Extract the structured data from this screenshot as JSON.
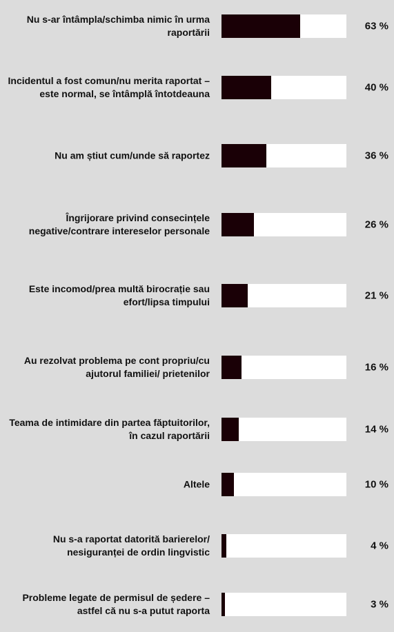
{
  "chart_data": {
    "type": "bar",
    "orientation": "horizontal",
    "categories": [
      "Nu s-ar întâmpla/schimba nimic în urma raportării",
      "Incidentul a fost comun/nu merita raportat – este normal, se întâmplă întotdeauna",
      "Nu am știut cum/unde să raportez",
      "Îngrijorare privind consecințele negative/contrare intereselor personale",
      "Este incomod/prea multă birocrație sau efort/lipsa timpului",
      "Au rezolvat problema pe cont propriu/cu ajutorul familiei/ prietenilor",
      "Teama de intimidare din partea făptuitorilor, în cazul raportării",
      "Altele",
      "Nu s-a raportat datorită barierelor/ nesiguranței de ordin lingvistic",
      "Probleme legate de permisul de ședere – astfel că nu s-a putut raporta"
    ],
    "values": [
      63,
      40,
      36,
      26,
      21,
      16,
      14,
      10,
      4,
      3
    ],
    "value_labels": [
      "63 %",
      "40 %",
      "36 %",
      "26 %",
      "21 %",
      "16 %",
      "14 %",
      "10 %",
      "4 %",
      "3 %"
    ],
    "color": "#1a0006",
    "xlim": [
      0,
      100
    ]
  }
}
